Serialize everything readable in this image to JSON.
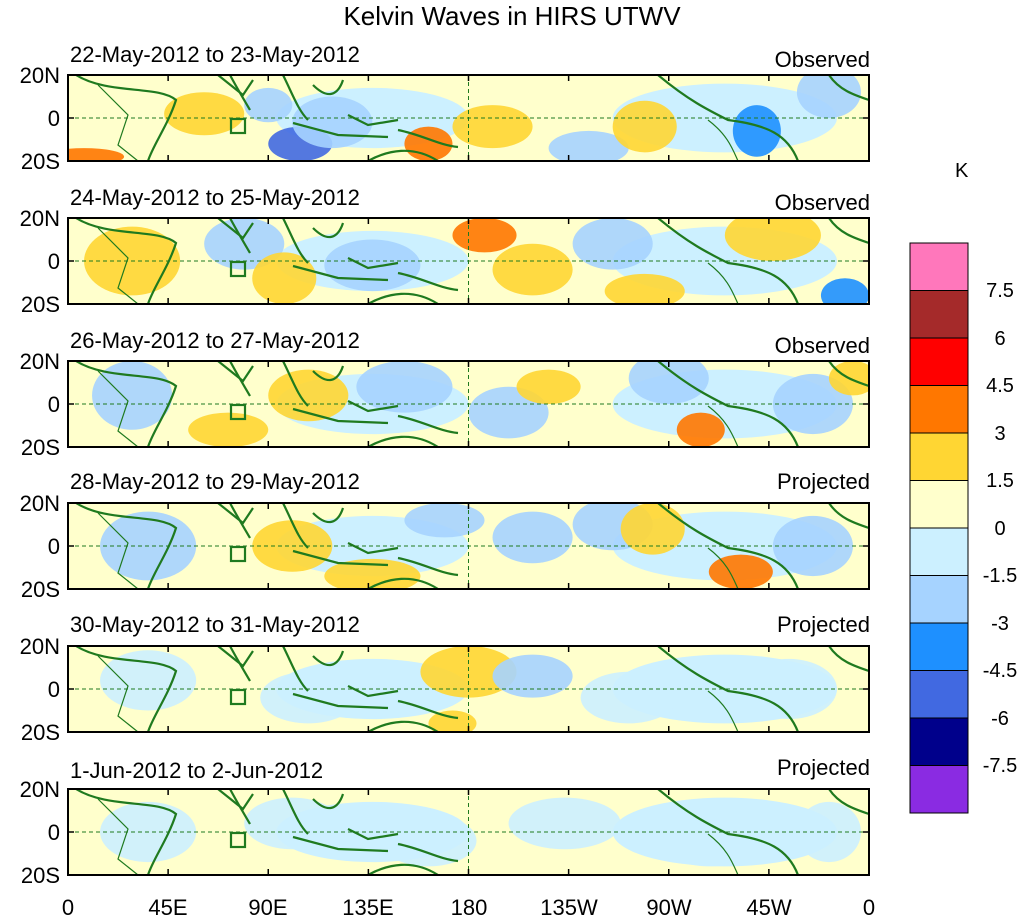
{
  "title": "Kelvin Waves in HIRS UTWV",
  "colors": {
    "coast": "#1f7a1f",
    "frame": "#000000",
    "gridline": "#1f7a1f"
  },
  "panels": [
    {
      "date_range": "22-May-2012 to 23-May-2012",
      "status": "Observed"
    },
    {
      "date_range": "24-May-2012 to 25-May-2012",
      "status": "Observed"
    },
    {
      "date_range": "26-May-2012 to 27-May-2012",
      "status": "Observed"
    },
    {
      "date_range": "28-May-2012 to 29-May-2012",
      "status": "Projected"
    },
    {
      "date_range": "30-May-2012 to 31-May-2012",
      "status": "Projected"
    },
    {
      "date_range": "1-Jun-2012 to 2-Jun-2012",
      "status": "Projected"
    }
  ],
  "lat_labels": [
    "20N",
    "0",
    "20S"
  ],
  "lon_labels": [
    "0",
    "45E",
    "90E",
    "135E",
    "180",
    "135W",
    "90W",
    "45W",
    "0"
  ],
  "colorbar": {
    "unit": "K",
    "labels": [
      "7.5",
      "6",
      "4.5",
      "3",
      "1.5",
      "0",
      "-1.5",
      "-3",
      "-4.5",
      "-6",
      "-7.5"
    ],
    "colors": [
      "#ff77bb",
      "#a52a2a",
      "#ff0000",
      "#ff7700",
      "#ffd633",
      "#ffffcc",
      "#ccf0ff",
      "#a6d3ff",
      "#1e90ff",
      "#4169e1",
      "#00008b",
      "#8a2be2"
    ]
  }
}
